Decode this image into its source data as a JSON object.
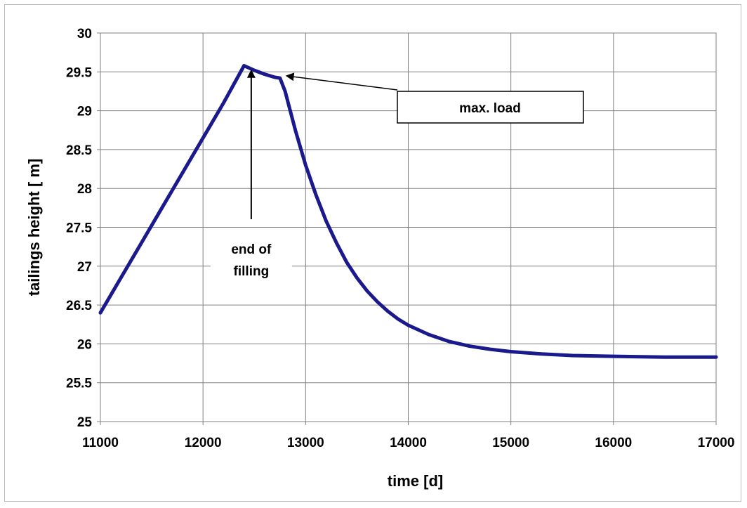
{
  "chart_data": {
    "type": "line",
    "title": "",
    "xlabel": "time [d]",
    "ylabel": "tailings height [ m]",
    "xlim": [
      11000,
      17000
    ],
    "ylim": [
      25,
      30
    ],
    "xticks": [
      11000,
      12000,
      13000,
      14000,
      15000,
      16000,
      17000
    ],
    "yticks": [
      25,
      25.5,
      26,
      26.5,
      27,
      27.5,
      28,
      28.5,
      29,
      29.5,
      30
    ],
    "ytick_labels": [
      "25",
      "25.5",
      "26",
      "26.5",
      "27",
      "27.5",
      "28",
      "28.5",
      "29",
      "29.5",
      "30"
    ],
    "grid": true,
    "legend": "none",
    "series_color": "#1a1a8c",
    "series": [
      {
        "x": [
          11000,
          11200,
          11400,
          11600,
          11800,
          12000,
          12200,
          12400,
          12500,
          12600,
          12700,
          12750,
          12800,
          12850,
          12900,
          13000,
          13100,
          13200,
          13300,
          13400,
          13500,
          13600,
          13700,
          13800,
          13900,
          14000,
          14200,
          14400,
          14600,
          14800,
          15000,
          15300,
          15600,
          16000,
          16500,
          17000
        ],
        "y": [
          26.4,
          26.85,
          27.3,
          27.75,
          28.2,
          28.65,
          29.1,
          29.58,
          29.52,
          29.47,
          29.43,
          29.42,
          29.25,
          29.0,
          28.75,
          28.3,
          27.92,
          27.58,
          27.3,
          27.05,
          26.85,
          26.68,
          26.54,
          26.42,
          26.32,
          26.24,
          26.12,
          26.03,
          25.97,
          25.93,
          25.9,
          25.87,
          25.85,
          25.84,
          25.83,
          25.83
        ]
      }
    ],
    "annotations": [
      {
        "text_lines": [
          "end of",
          "filling"
        ],
        "arrow_to": [
          12470,
          29.55
        ],
        "style": "label"
      },
      {
        "text_lines": [
          "max. load"
        ],
        "arrow_to": [
          12790,
          29.43
        ],
        "style": "box"
      }
    ]
  }
}
